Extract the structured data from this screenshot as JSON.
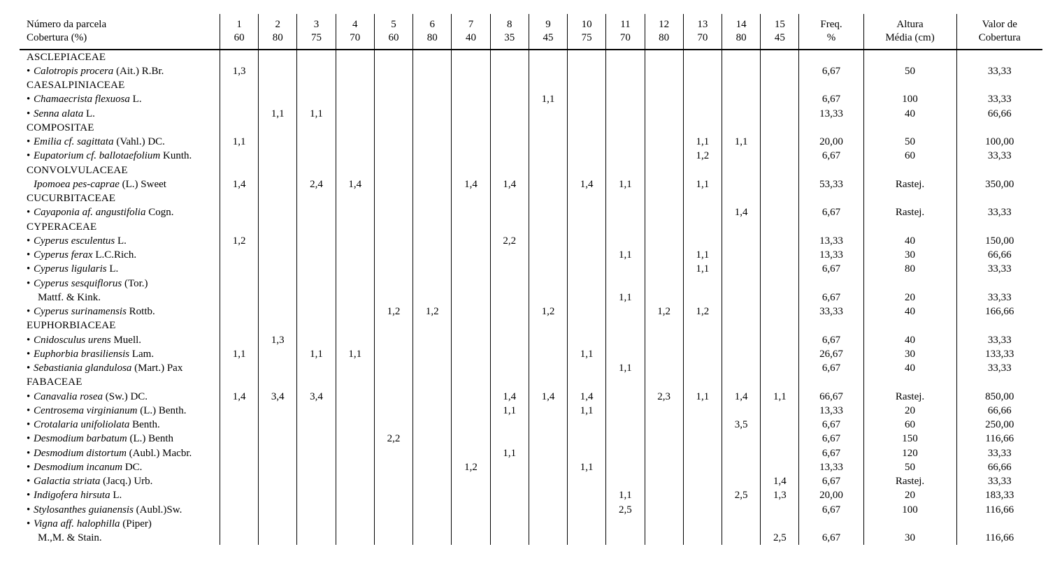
{
  "header": {
    "species_col": {
      "line1": "Número da parcela",
      "line2": "Cobertura (%)"
    },
    "plots": [
      {
        "n": "1",
        "c": "60"
      },
      {
        "n": "2",
        "c": "80"
      },
      {
        "n": "3",
        "c": "75"
      },
      {
        "n": "4",
        "c": "70"
      },
      {
        "n": "5",
        "c": "60"
      },
      {
        "n": "6",
        "c": "80"
      },
      {
        "n": "7",
        "c": "40"
      },
      {
        "n": "8",
        "c": "35"
      },
      {
        "n": "9",
        "c": "45"
      },
      {
        "n": "10",
        "c": "75"
      },
      {
        "n": "11",
        "c": "70"
      },
      {
        "n": "12",
        "c": "80"
      },
      {
        "n": "13",
        "c": "70"
      },
      {
        "n": "14",
        "c": "80"
      },
      {
        "n": "15",
        "c": "45"
      }
    ],
    "freq": {
      "line1": "Freq.",
      "line2": "%"
    },
    "altura": {
      "line1": "Altura",
      "line2": "Média (cm)"
    },
    "valor": {
      "line1": "Valor de",
      "line2": "Cobertura"
    }
  },
  "rows": [
    {
      "type": "family",
      "label": "ASCLEPIACEAE"
    },
    {
      "type": "species",
      "bullet": true,
      "latin": "Calotropis procera",
      "auth": " (Ait.) R.Br.",
      "v": [
        "1,3",
        "",
        "",
        "",
        "",
        "",
        "",
        "",
        "",
        "",
        "",
        "",
        "",
        "",
        ""
      ],
      "freq": "6,67",
      "alt": "50",
      "val": "33,33"
    },
    {
      "type": "family",
      "label": "CAESALPINIACEAE"
    },
    {
      "type": "species",
      "bullet": true,
      "latin": "Chamaecrista flexuosa",
      "auth": " L.",
      "v": [
        "",
        "",
        "",
        "",
        "",
        "",
        "",
        "",
        "1,1",
        "",
        "",
        "",
        "",
        "",
        ""
      ],
      "freq": "6,67",
      "alt": "100",
      "val": "33,33"
    },
    {
      "type": "species",
      "bullet": true,
      "latin": "Senna alata",
      "auth": " L.",
      "v": [
        "",
        "1,1",
        "1,1",
        "",
        "",
        "",
        "",
        "",
        "",
        "",
        "",
        "",
        "",
        "",
        ""
      ],
      "freq": "13,33",
      "alt": "40",
      "val": "66,66"
    },
    {
      "type": "family",
      "label": "COMPOSITAE"
    },
    {
      "type": "species",
      "bullet": true,
      "latin": "Emilia",
      "cf": " cf.",
      "latin2": " sagittata",
      "auth": " (Vahl.) DC.",
      "v": [
        "1,1",
        "",
        "",
        "",
        "",
        "",
        "",
        "",
        "",
        "",
        "",
        "",
        "1,1",
        "1,1",
        ""
      ],
      "freq": "20,00",
      "alt": "50",
      "val": "100,00"
    },
    {
      "type": "species",
      "bullet": true,
      "latin": "Eupatorium",
      "cf": " cf.",
      "latin2": " ballotaefolium",
      "auth": " Kunth.",
      "v": [
        "",
        "",
        "",
        "",
        "",
        "",
        "",
        "",
        "",
        "",
        "",
        "",
        "1,2",
        "",
        ""
      ],
      "freq": "6,67",
      "alt": "60",
      "val": "33,33"
    },
    {
      "type": "family",
      "label": "CONVOLVULACEAE"
    },
    {
      "type": "species",
      "bullet": false,
      "latin": "Ipomoea pes-caprae",
      "auth": " (L.) Sweet",
      "v": [
        "1,4",
        "",
        "2,4",
        "1,4",
        "",
        "",
        "1,4",
        "1,4",
        "",
        "1,4",
        "1,1",
        "",
        "1,1",
        "",
        ""
      ],
      "freq": "53,33",
      "alt": "Rastej.",
      "val": "350,00"
    },
    {
      "type": "family",
      "label": "CUCURBITACEAE"
    },
    {
      "type": "species",
      "bullet": true,
      "latin": "Cayaponia",
      "cf": " af.",
      "latin2": " angustifolia",
      "auth": " Cogn.",
      "v": [
        "",
        "",
        "",
        "",
        "",
        "",
        "",
        "",
        "",
        "",
        "",
        "",
        "",
        "1,4",
        ""
      ],
      "freq": "6,67",
      "alt": "Rastej.",
      "val": "33,33"
    },
    {
      "type": "family",
      "label": "CYPERACEAE"
    },
    {
      "type": "species",
      "bullet": true,
      "latin": "Cyperus esculentus",
      "auth": " L.",
      "v": [
        "1,2",
        "",
        "",
        "",
        "",
        "",
        "",
        "2,2",
        "",
        "",
        "",
        "",
        "",
        "",
        ""
      ],
      "freq": "13,33",
      "alt": "40",
      "val": "150,00"
    },
    {
      "type": "species",
      "bullet": true,
      "latin": "Cyperus ferax",
      "auth": " L.C.Rich.",
      "v": [
        "",
        "",
        "",
        "",
        "",
        "",
        "",
        "",
        "",
        "",
        "1,1",
        "",
        "1,1",
        "",
        ""
      ],
      "freq": "13,33",
      "alt": "30",
      "val": "66,66"
    },
    {
      "type": "species",
      "bullet": true,
      "latin": "Cyperus ligularis",
      "auth": " L.",
      "v": [
        "",
        "",
        "",
        "",
        "",
        "",
        "",
        "",
        "",
        "",
        "",
        "",
        "1,1",
        "",
        ""
      ],
      "freq": "6,67",
      "alt": "80",
      "val": "33,33"
    },
    {
      "type": "species",
      "bullet": true,
      "latin": "Cyperus sesquiflorus",
      "auth": " (Tor.)",
      "v": [
        "",
        "",
        "",
        "",
        "",
        "",
        "",
        "",
        "",
        "",
        "",
        "",
        "",
        "",
        ""
      ],
      "freq": "",
      "alt": "",
      "val": ""
    },
    {
      "type": "cont",
      "label": "Mattf. & Kink.",
      "v": [
        "",
        "",
        "",
        "",
        "",
        "",
        "",
        "",
        "",
        "",
        "1,1",
        "",
        "",
        "",
        ""
      ],
      "freq": "6,67",
      "alt": "20",
      "val": "33,33"
    },
    {
      "type": "species",
      "bullet": true,
      "latin": "Cyperus surinamensis",
      "auth": " Rottb.",
      "v": [
        "",
        "",
        "",
        "",
        "1,2",
        "1,2",
        "",
        "",
        "1,2",
        "",
        "",
        "1,2",
        "1,2",
        "",
        ""
      ],
      "freq": "33,33",
      "alt": "40",
      "val": "166,66"
    },
    {
      "type": "family",
      "label": "EUPHORBIACEAE"
    },
    {
      "type": "species",
      "bullet": true,
      "latin": "Cnidosculus urens",
      "auth": " Muell.",
      "v": [
        "",
        "1,3",
        "",
        "",
        "",
        "",
        "",
        "",
        "",
        "",
        "",
        "",
        "",
        "",
        ""
      ],
      "freq": "6,67",
      "alt": "40",
      "val": "33,33"
    },
    {
      "type": "species",
      "bullet": true,
      "latin": "Euphorbia brasiliensis",
      "auth": " Lam.",
      "v": [
        "1,1",
        "",
        "1,1",
        "1,1",
        "",
        "",
        "",
        "",
        "",
        "1,1",
        "",
        "",
        "",
        "",
        ""
      ],
      "freq": "26,67",
      "alt": "30",
      "val": "133,33"
    },
    {
      "type": "species",
      "bullet": true,
      "latin": "Sebastiania glandulosa",
      "auth": " (Mart.) Pax",
      "v": [
        "",
        "",
        "",
        "",
        "",
        "",
        "",
        "",
        "",
        "",
        "1,1",
        "",
        "",
        "",
        ""
      ],
      "freq": "6,67",
      "alt": "40",
      "val": "33,33"
    },
    {
      "type": "family",
      "label": "FABACEAE"
    },
    {
      "type": "species",
      "bullet": true,
      "latin": "Canavalia rosea",
      "auth": " (Sw.) DC.",
      "v": [
        "1,4",
        "3,4",
        "3,4",
        "",
        "",
        "",
        "",
        "1,4",
        "1,4",
        "1,4",
        "",
        "2,3",
        "1,1",
        "1,4",
        "1,1"
      ],
      "freq": "66,67",
      "alt": "Rastej.",
      "val": "850,00"
    },
    {
      "type": "species",
      "bullet": true,
      "latin": "Centrosema virginianum",
      "auth": " (L.) Benth.",
      "v": [
        "",
        "",
        "",
        "",
        "",
        "",
        "",
        "1,1",
        "",
        "1,1",
        "",
        "",
        "",
        "",
        ""
      ],
      "freq": "13,33",
      "alt": "20",
      "val": "66,66"
    },
    {
      "type": "species",
      "bullet": true,
      "latin": "Crotalaria unifoliolata",
      "auth": " Benth.",
      "v": [
        "",
        "",
        "",
        "",
        "",
        "",
        "",
        "",
        "",
        "",
        "",
        "",
        "",
        "3,5",
        ""
      ],
      "freq": "6,67",
      "alt": "60",
      "val": "250,00"
    },
    {
      "type": "species",
      "bullet": true,
      "latin": "Desmodium barbatum",
      "auth": " (L.) Benth",
      "v": [
        "",
        "",
        "",
        "",
        "2,2",
        "",
        "",
        "",
        "",
        "",
        "",
        "",
        "",
        "",
        ""
      ],
      "freq": "6,67",
      "alt": "150",
      "val": "116,66"
    },
    {
      "type": "species",
      "bullet": true,
      "latin": "Desmodium distortum",
      "auth": " (Aubl.) Macbr.",
      "v": [
        "",
        "",
        "",
        "",
        "",
        "",
        "",
        "1,1",
        "",
        "",
        "",
        "",
        "",
        "",
        ""
      ],
      "freq": "6,67",
      "alt": "120",
      "val": "33,33"
    },
    {
      "type": "species",
      "bullet": true,
      "latin": "Desmodium incanum",
      "auth": " DC.",
      "v": [
        "",
        "",
        "",
        "",
        "",
        "",
        "1,2",
        "",
        "",
        "1,1",
        "",
        "",
        "",
        "",
        ""
      ],
      "freq": "13,33",
      "alt": "50",
      "val": "66,66"
    },
    {
      "type": "species",
      "bullet": true,
      "latin": "Galactia striata",
      "auth": " (Jacq.) Urb.",
      "v": [
        "",
        "",
        "",
        "",
        "",
        "",
        "",
        "",
        "",
        "",
        "",
        "",
        "",
        "",
        "1,4"
      ],
      "freq": "6,67",
      "alt": "Rastej.",
      "val": "33,33"
    },
    {
      "type": "species",
      "bullet": true,
      "latin": "Indigofera hirsuta",
      "auth": " L.",
      "v": [
        "",
        "",
        "",
        "",
        "",
        "",
        "",
        "",
        "",
        "",
        "1,1",
        "",
        "",
        "2,5",
        "1,3"
      ],
      "freq": "20,00",
      "alt": "20",
      "val": "183,33"
    },
    {
      "type": "species",
      "bullet": true,
      "latin": "Stylosanthes guianensis",
      "auth": " (Aubl.)Sw.",
      "v": [
        "",
        "",
        "",
        "",
        "",
        "",
        "",
        "",
        "",
        "",
        "2,5",
        "",
        "",
        "",
        ""
      ],
      "freq": "6,67",
      "alt": "100",
      "val": "116,66"
    },
    {
      "type": "species",
      "bullet": true,
      "latin": "Vigna",
      "cf": " aff.",
      "latin2": " halophilla",
      "auth": " (Piper)",
      "v": [
        "",
        "",
        "",
        "",
        "",
        "",
        "",
        "",
        "",
        "",
        "",
        "",
        "",
        "",
        ""
      ],
      "freq": "",
      "alt": "",
      "val": ""
    },
    {
      "type": "cont",
      "label": "M.,M. & Stain.",
      "v": [
        "",
        "",
        "",
        "",
        "",
        "",
        "",
        "",
        "",
        "",
        "",
        "",
        "",
        "",
        "2,5"
      ],
      "freq": "6,67",
      "alt": "30",
      "val": "116,66"
    }
  ]
}
